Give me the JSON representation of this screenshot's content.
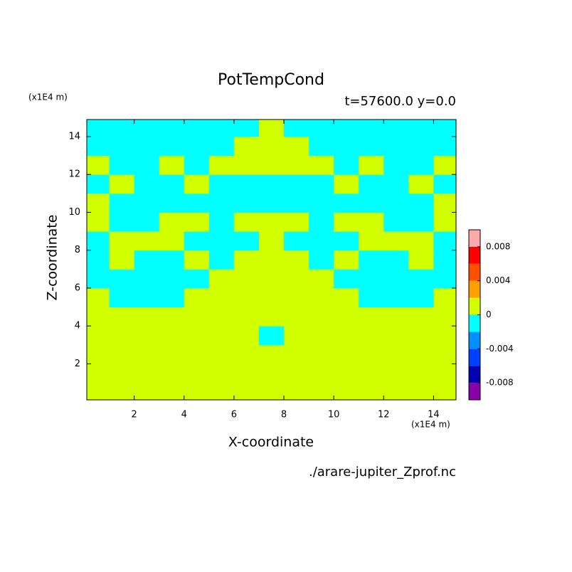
{
  "chart_data": {
    "type": "contour",
    "title": "PotTempCond",
    "subtitle": "t=57600.0 y=0.0",
    "x_label": "X-coordinate",
    "y_label": "Z-coordinate",
    "x_unit": "(x1E4 m)",
    "y_unit": "(x1E4 m)",
    "footer": "./arare-jupiter_Zprof.nc",
    "xlim": [
      0.1,
      14.9
    ],
    "ylim": [
      0.1,
      14.9
    ],
    "xticks": [
      2,
      4,
      6,
      8,
      10,
      12,
      14
    ],
    "yticks": [
      2,
      4,
      6,
      8,
      10,
      12,
      14
    ],
    "x": [
      0.5,
      1.5,
      2.5,
      3.5,
      4.5,
      5.5,
      6.5,
      7.5,
      8.5,
      9.5,
      10.5,
      11.5,
      12.5,
      13.5,
      14.5
    ],
    "y": [
      0.5,
      1.5,
      2.5,
      3.5,
      4.5,
      5.5,
      6.5,
      7.5,
      8.5,
      9.5,
      10.5,
      11.5,
      12.5,
      13.5,
      14.5
    ],
    "z": [
      [
        0.001,
        0.001,
        0.001,
        0.001,
        0.001,
        0.001,
        0.001,
        0.001,
        0.001,
        0.001,
        0.001,
        0.001,
        0.001,
        0.001,
        0.001
      ],
      [
        0.001,
        0.001,
        0.001,
        0.001,
        0.001,
        0.001,
        0.001,
        0.001,
        0.001,
        0.001,
        0.001,
        0.001,
        0.001,
        0.001,
        0.001
      ],
      [
        0.001,
        0.001,
        0.001,
        0.001,
        0.001,
        0.001,
        0.001,
        0.001,
        0.001,
        0.001,
        0.001,
        0.001,
        0.001,
        0.001,
        0.001
      ],
      [
        0.001,
        0.001,
        0.001,
        0.001,
        0.001,
        0.001,
        0.001,
        -0.001,
        0.001,
        0.001,
        0.001,
        0.001,
        0.001,
        0.001,
        0.001
      ],
      [
        0.001,
        0.001,
        0.001,
        0.001,
        0.001,
        0.001,
        0.001,
        0.001,
        0.001,
        0.001,
        0.001,
        0.001,
        0.001,
        0.001,
        0.001
      ],
      [
        0.001,
        -0.001,
        -0.001,
        -0.001,
        0.001,
        0.001,
        0.001,
        0.001,
        0.001,
        0.001,
        0.001,
        -0.001,
        -0.001,
        -0.001,
        0.001
      ],
      [
        -0.001,
        -0.001,
        -0.001,
        -0.001,
        -0.001,
        0.001,
        0.001,
        0.001,
        0.001,
        0.001,
        -0.001,
        -0.001,
        -0.001,
        -0.001,
        -0.001
      ],
      [
        -0.001,
        0.001,
        -0.001,
        -0.001,
        0.001,
        -0.001,
        0.001,
        0.001,
        0.001,
        -0.001,
        0.001,
        -0.001,
        -0.001,
        0.001,
        -0.001
      ],
      [
        -0.001,
        0.001,
        0.001,
        0.001,
        -0.001,
        -0.001,
        -0.001,
        0.001,
        -0.001,
        -0.001,
        -0.001,
        0.001,
        0.001,
        0.001,
        -0.001
      ],
      [
        0.001,
        -0.001,
        -0.001,
        0.001,
        0.001,
        -0.001,
        0.001,
        0.001,
        0.001,
        -0.001,
        0.001,
        0.001,
        -0.001,
        -0.001,
        0.001
      ],
      [
        0.001,
        -0.001,
        -0.001,
        -0.001,
        -0.001,
        -0.001,
        -0.001,
        -0.001,
        -0.001,
        -0.001,
        -0.001,
        -0.001,
        -0.001,
        -0.001,
        0.001
      ],
      [
        -0.001,
        0.001,
        -0.001,
        -0.001,
        0.001,
        -0.001,
        -0.001,
        -0.001,
        -0.001,
        -0.001,
        0.001,
        -0.001,
        -0.001,
        0.001,
        -0.001
      ],
      [
        0.001,
        -0.001,
        -0.001,
        0.001,
        -0.001,
        0.001,
        0.001,
        0.001,
        0.001,
        0.001,
        -0.001,
        0.001,
        -0.001,
        -0.001,
        0.001
      ],
      [
        -0.001,
        -0.001,
        -0.001,
        -0.001,
        -0.001,
        -0.001,
        0.001,
        0.001,
        0.001,
        -0.001,
        -0.001,
        -0.001,
        -0.001,
        -0.001,
        -0.001
      ],
      [
        -0.001,
        -0.001,
        -0.001,
        -0.001,
        -0.001,
        -0.001,
        -0.001,
        0.001,
        -0.001,
        -0.001,
        -0.001,
        -0.001,
        -0.001,
        -0.001,
        -0.001
      ]
    ],
    "levels": [
      -0.01,
      -0.008,
      -0.006,
      -0.004,
      -0.002,
      0,
      0.002,
      0.004,
      0.006,
      0.008,
      0.01
    ],
    "colors": [
      "#8a00a8",
      "#0000b0",
      "#0040ff",
      "#0090ff",
      "#00ffff",
      "#d2ff00",
      "#ffa000",
      "#ff5000",
      "#ff0000",
      "#ffaaaa"
    ],
    "colorbar_ticks": [
      -0.008,
      -0.004,
      0,
      0.004,
      0.008
    ]
  }
}
